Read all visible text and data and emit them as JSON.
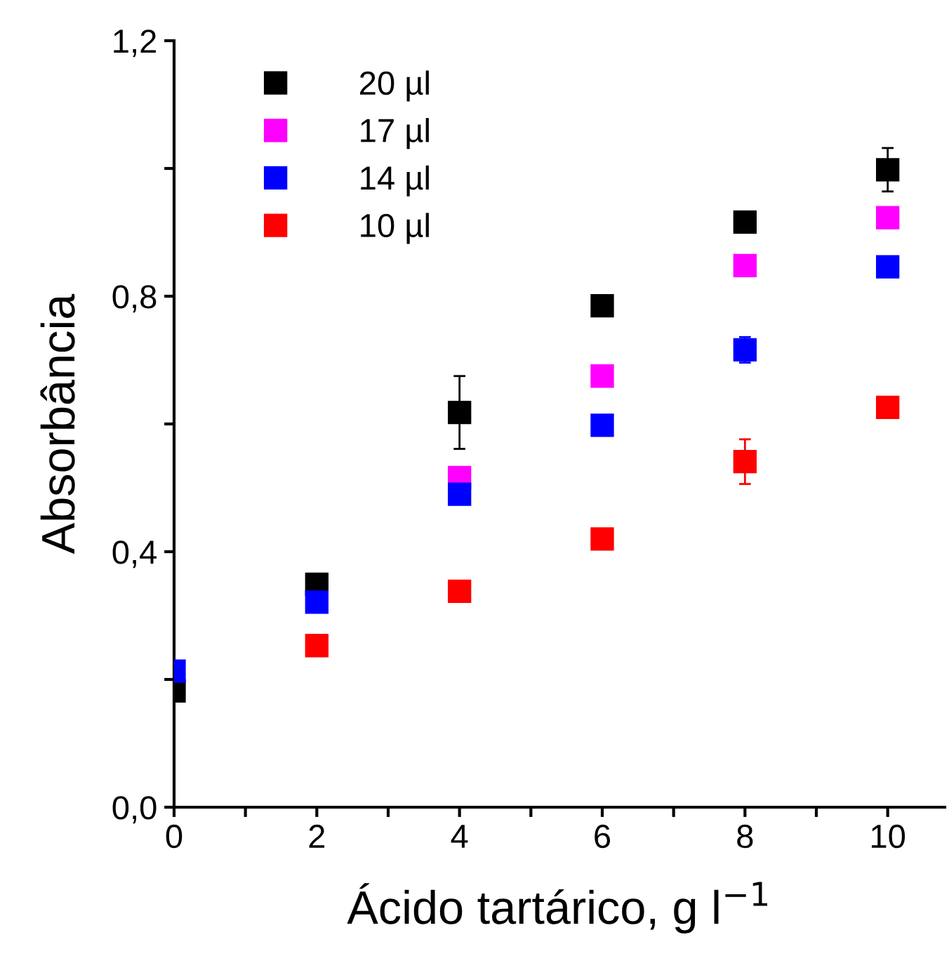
{
  "chart_data": {
    "type": "scatter",
    "xlabel": "Ácido tartárico, g l$^{−1}$",
    "ylabel": "Absorbância",
    "x": [
      0,
      2,
      4,
      6,
      8,
      10
    ],
    "series": [
      {
        "name": "20 µl",
        "color": "#000000",
        "values": [
          0.182,
          0.349,
          0.618,
          0.785,
          0.916,
          0.998
        ],
        "errors": [
          null,
          null,
          0.057,
          null,
          null,
          0.034
        ]
      },
      {
        "name": "17 µl",
        "color": "#ff00ff",
        "values": [
          null,
          null,
          0.516,
          0.675,
          0.848,
          0.923
        ]
      },
      {
        "name": "14 µl",
        "color": "#0000ff",
        "values": [
          0.213,
          0.321,
          0.49,
          0.598,
          0.716,
          0.846
        ],
        "errors": [
          null,
          null,
          null,
          null,
          0.02,
          null
        ]
      },
      {
        "name": "10 µl",
        "color": "#ff0000",
        "values": [
          null,
          0.253,
          0.338,
          0.42,
          0.541,
          0.626
        ],
        "errors": [
          null,
          null,
          null,
          null,
          0.035,
          null
        ]
      }
    ],
    "xlim": [
      0,
      10.8
    ],
    "ylim": [
      0,
      1.2
    ],
    "xticks": [
      0,
      {
        "value": 1,
        "label": null
      },
      2,
      {
        "value": 3,
        "label": null
      },
      4,
      {
        "value": 5,
        "label": null
      },
      6,
      {
        "value": 7,
        "label": null
      },
      8,
      {
        "value": 9,
        "label": null
      },
      10
    ],
    "yticks": [
      {
        "value": 0,
        "label": "0,0"
      },
      {
        "value": 0.2,
        "label": null
      },
      {
        "value": 0.4,
        "label": "0,4"
      },
      {
        "value": 0.6,
        "label": null
      },
      {
        "value": 0.8,
        "label": "0,8"
      },
      {
        "value": 1.0,
        "label": null
      },
      {
        "value": 1.2,
        "label": "1,2"
      }
    ],
    "marker": "square",
    "legend": "top left",
    "grid": false
  }
}
